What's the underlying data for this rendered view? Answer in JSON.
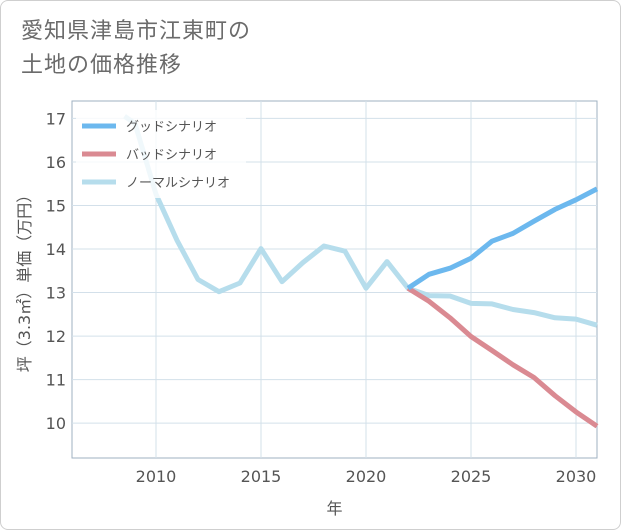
{
  "title_lines": [
    "愛知県津島市江東町の",
    "土地の価格推移"
  ],
  "chart_data": {
    "type": "line",
    "xlabel": "年",
    "ylabel": "坪（3.3㎡）単価（万円）",
    "xlim": [
      2006,
      2031
    ],
    "ylim": [
      9.2,
      17.4
    ],
    "xticks": [
      2010,
      2015,
      2020,
      2025,
      2030
    ],
    "yticks": [
      10,
      11,
      12,
      13,
      14,
      15,
      16,
      17
    ],
    "grid": true,
    "legend_position": "top-left",
    "series": [
      {
        "name": "グッドシナリオ",
        "color": "#6cb8ee",
        "x": [
          2022,
          2023,
          2024,
          2025,
          2026,
          2027,
          2028,
          2029,
          2030,
          2031
        ],
        "y": [
          13.1,
          13.42,
          13.56,
          13.79,
          14.18,
          14.36,
          14.64,
          14.91,
          15.13,
          15.38
        ]
      },
      {
        "name": "バッドシナリオ",
        "color": "#da8a92",
        "x": [
          2022,
          2023,
          2024,
          2025,
          2026,
          2027,
          2028,
          2029,
          2030,
          2031
        ],
        "y": [
          13.1,
          12.8,
          12.42,
          11.99,
          11.67,
          11.34,
          11.05,
          10.63,
          10.26,
          9.93
        ]
      },
      {
        "name": "ノーマルシナリオ",
        "color": "#b6ddec",
        "x": [
          2008.5,
          2009,
          2010,
          2011,
          2012,
          2013,
          2014,
          2015,
          2016,
          2017,
          2018,
          2019,
          2020,
          2021,
          2022,
          2023,
          2024,
          2025,
          2026,
          2027,
          2028,
          2029,
          2030,
          2031
        ],
        "y": [
          17.05,
          16.88,
          15.26,
          14.2,
          13.3,
          13.02,
          13.22,
          14.01,
          13.25,
          13.69,
          14.07,
          13.95,
          13.1,
          13.71,
          13.1,
          12.93,
          12.92,
          12.75,
          12.74,
          12.61,
          12.54,
          12.42,
          12.39,
          12.25
        ]
      }
    ]
  }
}
